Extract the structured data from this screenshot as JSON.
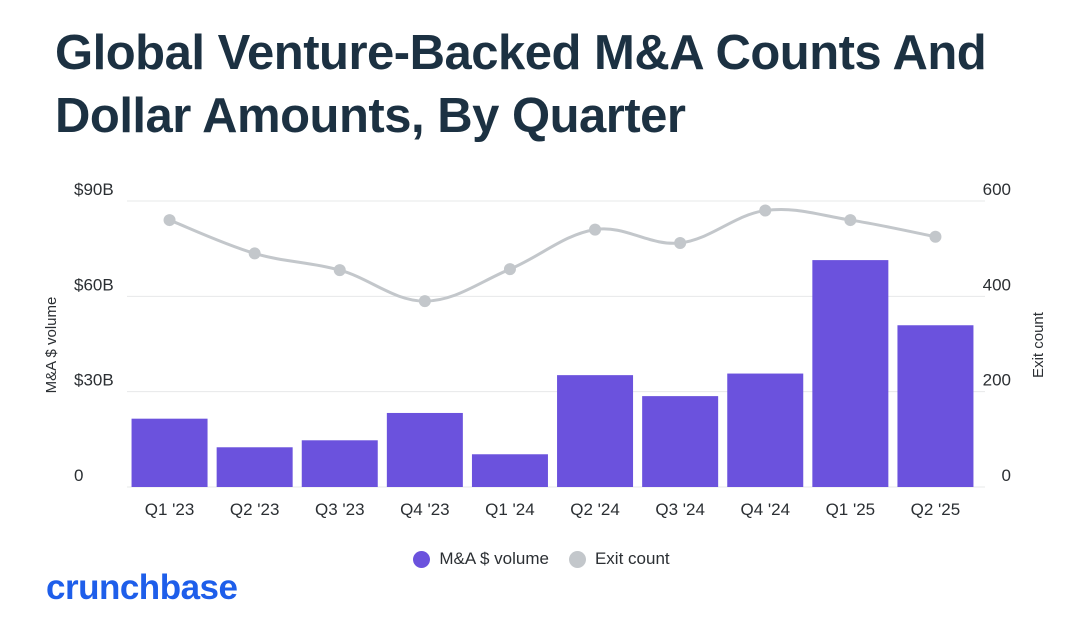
{
  "title": "Global Venture-Backed M&A Counts And Dollar Amounts, By Quarter",
  "brand": "crunchbase",
  "colors": {
    "bar": "#6b52dd",
    "line": "#c3c7cb",
    "marker": "#c3c7cb",
    "title": "#1c3142",
    "brand": "#1e5eea",
    "grid": "#e7e8ea",
    "axis_text": "#2b2f33"
  },
  "chart_data": {
    "type": "bar+line",
    "title": "Global Venture-Backed M&A Counts And Dollar Amounts, By Quarter",
    "categories": [
      "Q1 '23",
      "Q2 '23",
      "Q3 '23",
      "Q4 '23",
      "Q1 '24",
      "Q2 '24",
      "Q3 '24",
      "Q4 '24",
      "Q1 '25",
      "Q2 '25"
    ],
    "series": [
      {
        "name": "M&A $ volume",
        "type": "bar",
        "axis": "left",
        "unit": "billion USD",
        "values": [
          21.5,
          12.5,
          14.7,
          23.3,
          10.3,
          35.2,
          28.6,
          35.7,
          71.4,
          50.9
        ]
      },
      {
        "name": "Exit count",
        "type": "line",
        "axis": "right",
        "values": [
          560,
          490,
          455,
          390,
          457,
          540,
          512,
          580,
          560,
          525
        ]
      }
    ],
    "y_left": {
      "label": "M&A $ volume",
      "ylim": [
        0,
        90
      ],
      "ticks": [
        0,
        30,
        60,
        90
      ],
      "tick_labels": [
        "0",
        "$30B",
        "$60B",
        "$90B"
      ]
    },
    "y_right": {
      "label": "Exit count",
      "ylim": [
        0,
        600
      ],
      "ticks": [
        0,
        200,
        400,
        600
      ],
      "tick_labels": [
        "0",
        "200",
        "400",
        "600"
      ]
    },
    "legend": {
      "position": "bottom-center",
      "entries": [
        "M&A $ volume",
        "Exit count"
      ]
    },
    "grid": true
  }
}
